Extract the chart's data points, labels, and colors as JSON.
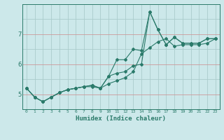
{
  "xlabel": "Humidex (Indice chaleur)",
  "ylabel": "",
  "x": [
    0,
    1,
    2,
    3,
    4,
    5,
    6,
    7,
    8,
    9,
    10,
    11,
    12,
    13,
    14,
    15,
    16,
    17,
    18,
    19,
    20,
    21,
    22,
    23
  ],
  "line1": [
    5.2,
    4.9,
    4.75,
    4.9,
    5.05,
    5.15,
    5.2,
    5.25,
    5.25,
    5.2,
    5.35,
    5.45,
    5.55,
    5.75,
    6.35,
    6.55,
    6.75,
    6.85,
    6.6,
    6.65,
    6.65,
    6.65,
    6.7,
    6.85
  ],
  "line2": [
    5.2,
    4.9,
    4.75,
    4.9,
    5.05,
    5.15,
    5.2,
    5.25,
    5.3,
    5.2,
    5.6,
    6.15,
    6.15,
    6.5,
    6.45,
    7.75,
    7.15,
    6.65,
    6.9,
    6.7,
    6.7,
    6.7,
    6.85,
    6.85
  ],
  "line3": [
    5.2,
    4.9,
    4.75,
    4.9,
    5.05,
    5.15,
    5.2,
    5.25,
    5.3,
    5.2,
    5.6,
    5.7,
    5.75,
    5.95,
    6.0,
    7.75,
    7.15,
    6.65,
    6.9,
    6.7,
    6.7,
    6.7,
    6.85,
    6.85
  ],
  "line_color": "#2a7a6a",
  "bg_color": "#cce8ea",
  "grid_color": "#aacccc",
  "plot_bg": "#cce8ea",
  "red_grid_color": "#cc9999",
  "yticks": [
    5,
    6,
    7
  ],
  "ylim": [
    4.5,
    8.0
  ],
  "xlim": [
    -0.5,
    23.5
  ],
  "xtick_fontsize": 4.5,
  "ytick_fontsize": 6.5,
  "xlabel_fontsize": 6.5
}
